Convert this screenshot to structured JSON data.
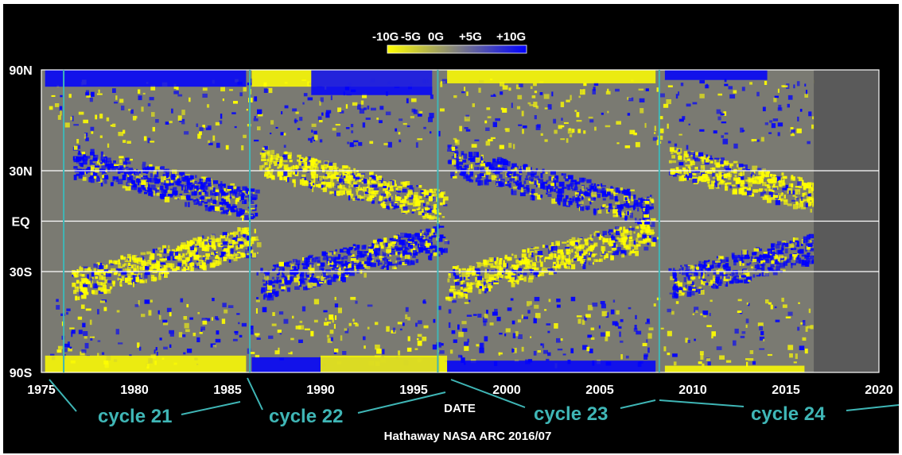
{
  "chart_data": {
    "type": "heatmap",
    "title": "",
    "xlabel": "DATE",
    "ylabel": "",
    "credit": "Hathaway NASA ARC 2016/07",
    "xlim": [
      1975,
      2020
    ],
    "ylim": [
      -90,
      90
    ],
    "x_ticks": [
      {
        "value": 1975,
        "label": "1975"
      },
      {
        "value": 1980,
        "label": "1980"
      },
      {
        "value": 1985,
        "label": "1985"
      },
      {
        "value": 1990,
        "label": "1990"
      },
      {
        "value": 1995,
        "label": "1995"
      },
      {
        "value": 2000,
        "label": "2000"
      },
      {
        "value": 2005,
        "label": "2005"
      },
      {
        "value": 2010,
        "label": "2010"
      },
      {
        "value": 2015,
        "label": "2015"
      },
      {
        "value": 2020,
        "label": "2020"
      }
    ],
    "y_ticks": [
      {
        "value": 90,
        "label": "90N"
      },
      {
        "value": 30,
        "label": "30N"
      },
      {
        "value": 0,
        "label": "EQ"
      },
      {
        "value": -30,
        "label": "30S"
      },
      {
        "value": -90,
        "label": "90S"
      }
    ],
    "gridlines_latitude": [
      30,
      0,
      -30
    ],
    "colorbar": {
      "labels": [
        "-10G",
        "-5G",
        "0G",
        "+5G",
        "+10G"
      ],
      "colors": [
        "#ffff00",
        "#808080",
        "#0000ff"
      ]
    },
    "data_end_year": 2016.5,
    "cycle_boundaries": [
      1976.2,
      1986.2,
      1996.3,
      2008.2
    ],
    "cycles": [
      {
        "name": "cycle 21",
        "label_year": 1983.3
      },
      {
        "name": "cycle 22",
        "label_year": 1992.5
      },
      {
        "name": "cycle 23",
        "label_year": 2005.3
      },
      {
        "name": "cycle 24",
        "label_year": 2016.0
      }
    ],
    "colors": {
      "background": "#000000",
      "positive": "#0000ff",
      "negative": "#ffff00",
      "neutral": "#7a7a72",
      "no_data": "#5a5a5a",
      "cycle_marker": "#3fb6b6",
      "grid": "#ffffff",
      "text": "#ffffff"
    }
  }
}
